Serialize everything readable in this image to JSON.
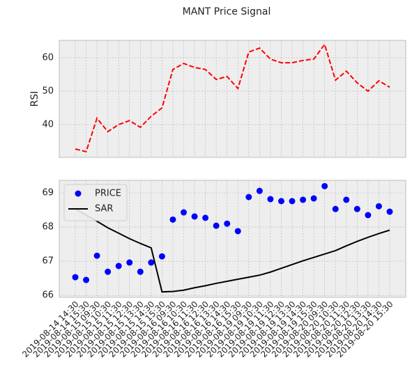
{
  "title": "MANT Price Signal",
  "chart_data": [
    {
      "type": "line",
      "ylabel": "RSI",
      "ylim": [
        30.2,
        65.2
      ],
      "yticks": [
        40,
        50,
        60
      ],
      "grid": true,
      "series": [
        {
          "color": "#ff0000",
          "linestyle": "dashed",
          "values": [
            32.7,
            31.9,
            41.9,
            37.9,
            40.0,
            41.2,
            39.2,
            42.5,
            45.0,
            56.5,
            58.3,
            57.1,
            56.5,
            53.5,
            54.4,
            50.8,
            61.7,
            62.9,
            59.6,
            58.5,
            58.5,
            59.2,
            59.6,
            64.0,
            53.3,
            56.0,
            52.5,
            50.0,
            53.1,
            51.2
          ]
        }
      ]
    },
    {
      "type": "line",
      "ylim": [
        65.94,
        69.37
      ],
      "yticks": [
        66,
        67,
        68,
        69
      ],
      "grid": true,
      "legend": "upper left",
      "categories": [
        "2019-08-14 14:30",
        "2019-08-14 15:30",
        "2019-08-15 09:30",
        "2019-08-15 10:30",
        "2019-08-15 11:30",
        "2019-08-15 12:30",
        "2019-08-15 13:30",
        "2019-08-15 14:30",
        "2019-08-15 15:30",
        "2019-08-16 09:30",
        "2019-08-16 10:30",
        "2019-08-16 11:30",
        "2019-08-16 12:30",
        "2019-08-16 13:30",
        "2019-08-16 14:30",
        "2019-08-16 15:30",
        "2019-08-19 09:30",
        "2019-08-19 10:30",
        "2019-08-19 11:30",
        "2019-08-19 12:30",
        "2019-08-19 13:30",
        "2019-08-19 14:30",
        "2019-08-19 15:30",
        "2019-08-20 09:30",
        "2019-08-20 10:30",
        "2019-08-20 11:30",
        "2019-08-20 12:30",
        "2019-08-20 13:30",
        "2019-08-20 14:30",
        "2019-08-20 15:30"
      ],
      "series": [
        {
          "name": "PRICE",
          "color": "#0000ff",
          "marker": "o",
          "linestyle": "none",
          "values": [
            66.53,
            66.45,
            67.16,
            66.69,
            66.86,
            66.96,
            66.69,
            66.96,
            67.14,
            68.22,
            68.43,
            68.31,
            68.27,
            68.04,
            68.1,
            67.88,
            68.88,
            69.06,
            68.82,
            68.76,
            68.76,
            68.8,
            68.84,
            69.2,
            68.53,
            68.8,
            68.53,
            68.35,
            68.61,
            68.45
          ]
        },
        {
          "name": "SAR",
          "color": "#000000",
          "linestyle": "solid",
          "values": [
            68.53,
            68.35,
            68.17,
            67.98,
            67.82,
            67.66,
            67.52,
            67.39,
            66.1,
            66.11,
            66.15,
            66.22,
            66.28,
            66.35,
            66.41,
            66.47,
            66.53,
            66.59,
            66.68,
            66.79,
            66.9,
            67.01,
            67.11,
            67.21,
            67.31,
            67.45,
            67.58,
            67.7,
            67.81,
            67.91
          ]
        }
      ]
    }
  ]
}
